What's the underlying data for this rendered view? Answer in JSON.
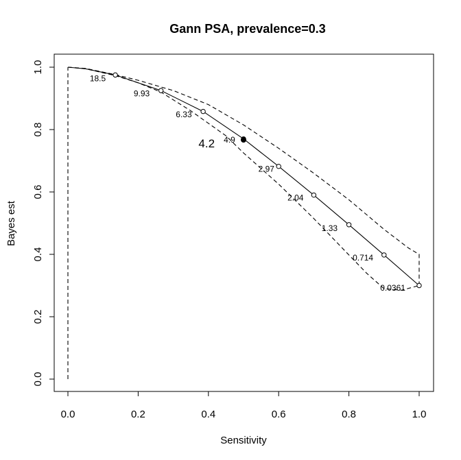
{
  "chart_data": {
    "type": "line",
    "title": "Gann PSA, prevalence=0.3",
    "xlabel": "Sensitivity",
    "ylabel": "Bayes est",
    "xlim": [
      0,
      1
    ],
    "ylim": [
      0,
      1
    ],
    "x_ticks": [
      "0.0",
      "0.2",
      "0.4",
      "0.6",
      "0.8",
      "1.0"
    ],
    "y_ticks": [
      "0.0",
      "0.2",
      "0.4",
      "0.6",
      "0.8",
      "1.0"
    ],
    "grid": false,
    "series": [
      {
        "style": "solid",
        "x": [
          0.0,
          0.05,
          0.135,
          0.265,
          0.385,
          0.5,
          0.6,
          0.7,
          0.8,
          0.9,
          1.0
        ],
        "y": [
          1.0,
          0.995,
          0.975,
          0.925,
          0.858,
          0.77,
          0.682,
          0.59,
          0.495,
          0.398,
          0.3
        ]
      },
      {
        "style": "dashed",
        "x": [
          0.0,
          0.05,
          0.135,
          0.2,
          0.3,
          0.4,
          0.5,
          0.6,
          0.7,
          0.8,
          0.9,
          0.97,
          1.0,
          1.0
        ],
        "y": [
          1.0,
          0.996,
          0.976,
          0.958,
          0.925,
          0.88,
          0.815,
          0.74,
          0.66,
          0.575,
          0.48,
          0.42,
          0.4,
          0.3
        ]
      },
      {
        "style": "dashed",
        "x": [
          0.0,
          0.05,
          0.135,
          0.2,
          0.265,
          0.35,
          0.45,
          0.5,
          0.6,
          0.7,
          0.8,
          0.85,
          0.9,
          0.95,
          1.0
        ],
        "y": [
          1.0,
          0.995,
          0.973,
          0.95,
          0.92,
          0.86,
          0.78,
          0.725,
          0.625,
          0.515,
          0.398,
          0.34,
          0.29,
          0.285,
          0.3
        ]
      },
      {
        "style": "dashed",
        "x": [
          0.0,
          0.0
        ],
        "y": [
          0.0,
          1.0
        ]
      }
    ],
    "cutoff_points": {
      "x": [
        0.135,
        0.265,
        0.385,
        0.5,
        0.6,
        0.7,
        0.8,
        0.9,
        1.0
      ],
      "y": [
        0.975,
        0.925,
        0.858,
        0.77,
        0.682,
        0.59,
        0.495,
        0.398,
        0.3
      ]
    },
    "highlight_point": {
      "x": 0.5,
      "y": 0.767
    },
    "cutoff_labels": [
      {
        "text": "18.5",
        "x": 0.085,
        "y": 0.955
      },
      {
        "text": "9.93",
        "x": 0.21,
        "y": 0.907
      },
      {
        "text": "6.33",
        "x": 0.33,
        "y": 0.84
      },
      {
        "text": "4.9",
        "x": 0.46,
        "y": 0.758
      },
      {
        "text": "2.97",
        "x": 0.565,
        "y": 0.665
      },
      {
        "text": "2.04",
        "x": 0.648,
        "y": 0.572
      },
      {
        "text": "1.33",
        "x": 0.745,
        "y": 0.475
      },
      {
        "text": "0.714",
        "x": 0.84,
        "y": 0.38
      },
      {
        "text": "0.0361",
        "x": 0.925,
        "y": 0.283
      }
    ],
    "highlight_label": {
      "text": "4.2",
      "x": 0.395,
      "y": 0.743
    }
  }
}
